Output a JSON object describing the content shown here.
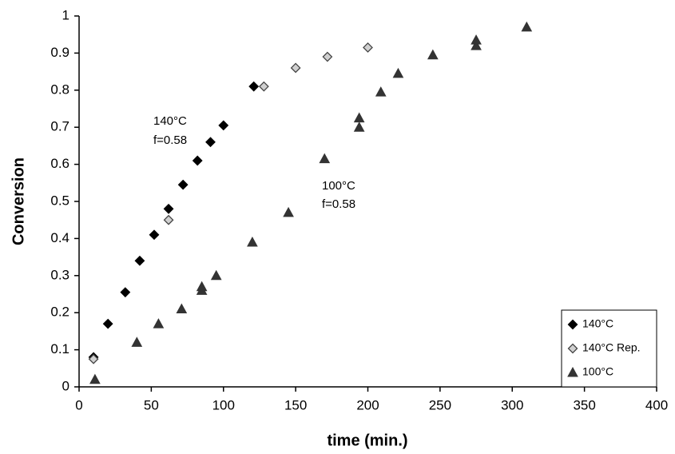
{
  "chart_data": {
    "type": "scatter",
    "xlabel": "time (min.)",
    "ylabel": "Conversion",
    "xlim": [
      0,
      400
    ],
    "xticks": [
      0,
      50,
      100,
      150,
      200,
      250,
      300,
      350,
      400
    ],
    "ylim": [
      0,
      1
    ],
    "yticks": [
      0,
      0.1,
      0.2,
      0.3,
      0.4,
      0.5,
      0.6,
      0.7,
      0.8,
      0.9,
      1
    ],
    "grid": false,
    "legend": "lower right",
    "annotations": [
      [
        "140°C",
        "f=0.58"
      ],
      [
        "100°C",
        "f=0.58"
      ]
    ],
    "series": [
      {
        "name": "140°C",
        "color": "#000000",
        "marker": "diamond",
        "x": [
          10,
          20,
          32,
          42,
          52,
          62,
          72,
          82,
          91,
          100,
          121
        ],
        "values": [
          0.08,
          0.17,
          0.255,
          0.34,
          0.41,
          0.48,
          0.545,
          0.61,
          0.66,
          0.705,
          0.81
        ]
      },
      {
        "name": "140°C Rep.",
        "color": "#d0d0d0",
        "marker": "diamond",
        "x": [
          10,
          62,
          128,
          150,
          172,
          200
        ],
        "values": [
          0.075,
          0.45,
          0.81,
          0.86,
          0.89,
          0.915
        ]
      },
      {
        "name": "100°C",
        "color": "#333333",
        "marker": "triangle",
        "x": [
          11,
          40,
          55,
          71,
          85,
          85,
          95,
          120,
          145,
          170,
          194,
          194,
          209,
          221,
          245,
          275,
          275,
          310
        ],
        "values": [
          0.02,
          0.12,
          0.17,
          0.21,
          0.26,
          0.27,
          0.3,
          0.39,
          0.47,
          0.615,
          0.7,
          0.725,
          0.795,
          0.845,
          0.895,
          0.92,
          0.935,
          0.97
        ]
      }
    ]
  }
}
